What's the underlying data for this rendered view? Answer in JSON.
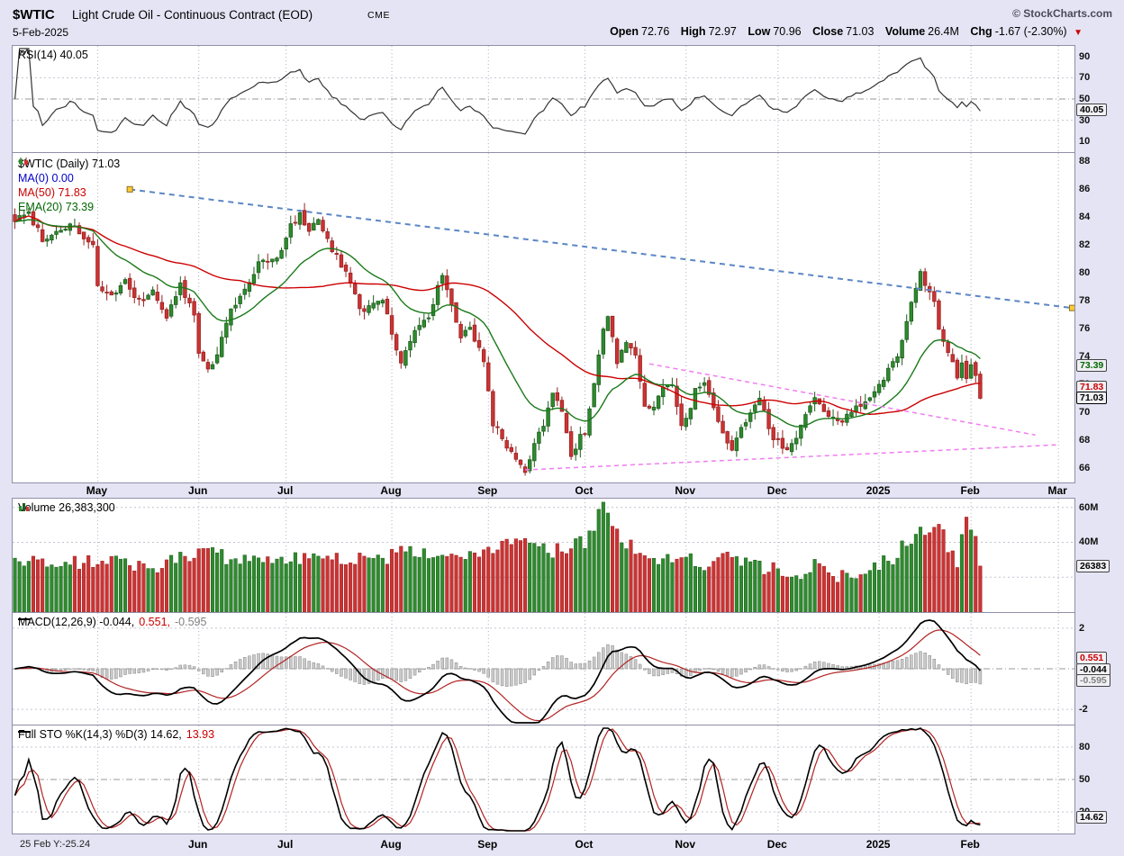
{
  "header": {
    "symbol": "$WTIC",
    "title": "Light Crude Oil - Continuous Contract (EOD)",
    "exchange": "CME",
    "copyright": "© StockCharts.com",
    "date": "5-Feb-2025",
    "quote": {
      "open_label": "Open",
      "open_value": "72.76",
      "high_label": "High",
      "high_value": "72.97",
      "low_label": "Low",
      "low_value": "70.96",
      "close_label": "Close",
      "close_value": "71.03",
      "volume_label": "Volume",
      "volume_value": "26.4M",
      "chg_label": "Chg",
      "chg_value": "-1.67 (-2.30%)",
      "chg_icon": "▼"
    }
  },
  "footer": {
    "cursor_label": "25 Feb Y:-25.24"
  },
  "colors": {
    "background": "#e4e4f4",
    "plot_bg": "#ffffff",
    "border": "#8f8fa8",
    "up": "#1d5c1d",
    "up_fill": "#2e8b2e",
    "down": "#992222",
    "down_fill": "#cc3333",
    "ma50": "#cc0000",
    "ema20": "#1a7a1a",
    "ma0": "#0000cc",
    "trendline_blue": "#5b87c5",
    "trendline_pink": "#f07df0",
    "trendline_anchor": "#ffcc33",
    "rsi_line": "#333333",
    "macd_line": "#000000",
    "signal_line": "#b22222",
    "hist_fill": "#c9c9c9",
    "hist_stroke": "#8a8a8a",
    "sto_k": "#000000",
    "sto_d": "#b22222",
    "grid": "#b0b0c0",
    "hline": "#999999",
    "chg": "#cc0000"
  },
  "x_axis": {
    "num_bars": 211,
    "total_slots": 231,
    "ticks": [
      {
        "label": "May",
        "day": 18
      },
      {
        "label": "Jun",
        "day": 40
      },
      {
        "label": "Jul",
        "day": 59
      },
      {
        "label": "Aug",
        "day": 82
      },
      {
        "label": "Sep",
        "day": 103
      },
      {
        "label": "Oct",
        "day": 124
      },
      {
        "label": "Nov",
        "day": 146
      },
      {
        "label": "Dec",
        "day": 166
      },
      {
        "label": "2025",
        "day": 188,
        "bold": true
      },
      {
        "label": "Feb",
        "day": 208
      },
      {
        "label": "Mar",
        "day": 227
      }
    ]
  },
  "chart_data": [
    {
      "id": "rsi",
      "type": "line",
      "indicator": "RSI(14)",
      "legend": "RSI(14) 40.05",
      "last": 40.05,
      "ylim": [
        0,
        100
      ],
      "yticks": [
        90,
        70,
        50,
        30,
        10
      ],
      "hlines": {
        "dashdot": [
          50
        ],
        "dotted": [
          70,
          30
        ]
      },
      "markers": [
        {
          "text": "40.05",
          "value": 40.05,
          "color": "#000000"
        }
      ]
    },
    {
      "id": "price",
      "type": "candlestick",
      "symbol": "$WTIC",
      "timeframe": "Daily",
      "legend_main": "$WTIC (Daily) 71.03",
      "overlays": [
        {
          "label": "MA(0) 0.00",
          "color": "#0000cc",
          "last": 0
        },
        {
          "label": "MA(50) 71.83",
          "color": "#cc0000",
          "last": 71.83
        },
        {
          "label": "EMA(20) 73.39",
          "color": "#006600",
          "last": 73.39
        }
      ],
      "last_bar": {
        "open": 72.76,
        "high": 72.97,
        "low": 70.96,
        "close": 71.03
      },
      "ylim": [
        65,
        88.6
      ],
      "yticks": [
        88,
        86,
        84,
        82,
        80,
        78,
        76,
        74,
        72,
        70,
        68,
        66
      ],
      "markers": [
        {
          "text": "73.39",
          "value": 73.39,
          "color": "#006600"
        },
        {
          "text": "71.83",
          "value": 71.83,
          "color": "#cc0000"
        },
        {
          "text": "71.03",
          "value": 71.03,
          "color": "#000000",
          "bold": true
        }
      ],
      "trendlines": [
        {
          "name": "descending-resistance",
          "color": "#5b87c5",
          "dash": "6 5",
          "width": 2,
          "anchors": true,
          "from": [
            25,
            86.0
          ],
          "to": [
            230,
            77.5
          ]
        },
        {
          "name": "wedge-upper",
          "color": "#f07df0",
          "dash": "5 4",
          "width": 1.5,
          "from": [
            138,
            73.5
          ],
          "to": [
            222,
            68.4
          ]
        },
        {
          "name": "wedge-lower",
          "color": "#f07df0",
          "dash": "5 4",
          "width": 1.5,
          "from": [
            111,
            65.9
          ],
          "to": [
            227,
            67.7
          ]
        }
      ],
      "keypoint_format": "[trading_day_index, close]",
      "close_keypoints": [
        [
          0,
          83.8
        ],
        [
          3,
          84.3
        ],
        [
          6,
          82.5
        ],
        [
          9,
          82.9
        ],
        [
          12,
          83.6
        ],
        [
          15,
          82.6
        ],
        [
          17,
          81.9
        ],
        [
          18,
          79.1
        ],
        [
          21,
          78.3
        ],
        [
          24,
          79.3
        ],
        [
          27,
          77.9
        ],
        [
          30,
          78.7
        ],
        [
          33,
          76.9
        ],
        [
          36,
          79.1
        ],
        [
          39,
          77.0
        ],
        [
          40,
          74.2
        ],
        [
          42,
          73.0
        ],
        [
          44,
          74.1
        ],
        [
          47,
          77.6
        ],
        [
          50,
          78.6
        ],
        [
          53,
          80.7
        ],
        [
          56,
          80.9
        ],
        [
          58,
          81.5
        ],
        [
          60,
          83.4
        ],
        [
          62,
          84.2
        ],
        [
          64,
          83.1
        ],
        [
          66,
          83.9
        ],
        [
          68,
          82.3
        ],
        [
          70,
          81.2
        ],
        [
          72,
          80.1
        ],
        [
          74,
          78.4
        ],
        [
          76,
          77.0
        ],
        [
          78,
          78.0
        ],
        [
          80,
          77.9
        ],
        [
          82,
          75.8
        ],
        [
          84,
          73.6
        ],
        [
          86,
          75.1
        ],
        [
          88,
          76.3
        ],
        [
          90,
          77.0
        ],
        [
          93,
          79.9
        ],
        [
          95,
          77.5
        ],
        [
          97,
          75.2
        ],
        [
          99,
          76.2
        ],
        [
          101,
          74.5
        ],
        [
          102,
          73.6
        ],
        [
          104,
          69.2
        ],
        [
          106,
          68.2
        ],
        [
          108,
          67.2
        ],
        [
          110,
          66.3
        ],
        [
          111,
          65.8
        ],
        [
          113,
          67.8
        ],
        [
          115,
          69.2
        ],
        [
          117,
          71.4
        ],
        [
          119,
          70.0
        ],
        [
          121,
          67.0
        ],
        [
          123,
          68.2
        ],
        [
          124,
          68.5
        ],
        [
          126,
          72.0
        ],
        [
          128,
          75.9
        ],
        [
          129,
          77.0
        ],
        [
          131,
          73.6
        ],
        [
          133,
          74.9
        ],
        [
          135,
          73.9
        ],
        [
          137,
          70.6
        ],
        [
          139,
          70.2
        ],
        [
          141,
          72.0
        ],
        [
          143,
          71.8
        ],
        [
          145,
          69.3
        ],
        [
          146,
          69.5
        ],
        [
          148,
          71.5
        ],
        [
          150,
          72.2
        ],
        [
          152,
          70.1
        ],
        [
          154,
          68.3
        ],
        [
          156,
          67.5
        ],
        [
          158,
          69.1
        ],
        [
          160,
          69.9
        ],
        [
          162,
          71.2
        ],
        [
          164,
          68.9
        ],
        [
          165,
          68.1
        ],
        [
          166,
          68.1
        ],
        [
          168,
          67.2
        ],
        [
          170,
          68.3
        ],
        [
          172,
          70.1
        ],
        [
          174,
          71.3
        ],
        [
          176,
          69.9
        ],
        [
          178,
          69.5
        ],
        [
          180,
          69.4
        ],
        [
          182,
          70.0
        ],
        [
          184,
          70.6
        ],
        [
          186,
          71.0
        ],
        [
          187,
          71.7
        ],
        [
          188,
          72.0
        ],
        [
          190,
          73.1
        ],
        [
          192,
          74.0
        ],
        [
          194,
          76.6
        ],
        [
          195,
          77.9
        ],
        [
          197,
          80.0
        ],
        [
          198,
          79.1
        ],
        [
          200,
          77.8
        ],
        [
          201,
          75.9
        ],
        [
          203,
          74.3
        ],
        [
          205,
          72.6
        ],
        [
          206,
          73.7
        ],
        [
          207,
          72.5
        ],
        [
          208,
          73.2
        ],
        [
          209,
          72.7
        ],
        [
          210,
          71.03
        ]
      ]
    },
    {
      "id": "volume",
      "type": "bar",
      "legend": "Volume 26,383,300",
      "last_label": "26,383,300",
      "last_millions": 26.38,
      "ylim": [
        0,
        65
      ],
      "yticks": [
        60,
        40
      ],
      "tick_suffix": "M",
      "hlines": {
        "dotted": [
          60,
          40,
          20
        ]
      },
      "markers": [
        {
          "text": "26383",
          "value": 26.38,
          "color": "#000000"
        }
      ],
      "keypoint_format": "[trading_day_index, millions_of_shares]",
      "volume_keypoints": [
        [
          0,
          30
        ],
        [
          10,
          27
        ],
        [
          20,
          31
        ],
        [
          30,
          26
        ],
        [
          40,
          34
        ],
        [
          50,
          30
        ],
        [
          59,
          28
        ],
        [
          64,
          33
        ],
        [
          70,
          30
        ],
        [
          80,
          29
        ],
        [
          84,
          36
        ],
        [
          93,
          33
        ],
        [
          100,
          30
        ],
        [
          104,
          38
        ],
        [
          111,
          42
        ],
        [
          117,
          35
        ],
        [
          124,
          40
        ],
        [
          128,
          61
        ],
        [
          131,
          45
        ],
        [
          136,
          34
        ],
        [
          141,
          30
        ],
        [
          146,
          32
        ],
        [
          150,
          28
        ],
        [
          155,
          30
        ],
        [
          160,
          26
        ],
        [
          166,
          24
        ],
        [
          170,
          20
        ],
        [
          174,
          26
        ],
        [
          178,
          19
        ],
        [
          182,
          22
        ],
        [
          186,
          24
        ],
        [
          189,
          28
        ],
        [
          192,
          33
        ],
        [
          194,
          40
        ],
        [
          197,
          47
        ],
        [
          199,
          42
        ],
        [
          201,
          52
        ],
        [
          203,
          36
        ],
        [
          205,
          30
        ],
        [
          207,
          50
        ],
        [
          208,
          46
        ],
        [
          209,
          40
        ],
        [
          210,
          26.4
        ]
      ]
    },
    {
      "id": "macd",
      "type": "line+histogram",
      "indicator": "MACD(12,26,9)",
      "legend_parts": [
        "MACD(12,26,9) -0.044,",
        "0.551,",
        "-0.595"
      ],
      "last": {
        "macd": -0.044,
        "signal": 0.551,
        "histogram": -0.595
      },
      "ylim": [
        -2.75,
        2.75
      ],
      "yticks": [
        2,
        -2
      ],
      "hlines": {
        "dashdot": [
          0
        ],
        "dotted": [
          2,
          -2
        ]
      },
      "markers": [
        {
          "text": "0.551",
          "value": 0.551,
          "color": "#cc0000"
        },
        {
          "text": "-0.044",
          "value": -0.044,
          "color": "#000000"
        },
        {
          "text": "-0.595",
          "value": -0.595,
          "color": "#808080"
        }
      ]
    },
    {
      "id": "sto",
      "type": "line",
      "indicator": "Full STO %K(14,3) %D(3)",
      "legend_parts": [
        "Full STO %K(14,3) %D(3) 14.62,",
        "13.93"
      ],
      "last": {
        "k": 14.62,
        "d": 13.93
      },
      "ylim": [
        0,
        100
      ],
      "yticks": [
        80,
        50,
        20
      ],
      "hlines": {
        "dashdot": [
          50
        ],
        "dotted": [
          80,
          20
        ]
      },
      "markers": [
        {
          "text": "14.62",
          "value": 14.62,
          "color": "#000000"
        }
      ]
    }
  ]
}
